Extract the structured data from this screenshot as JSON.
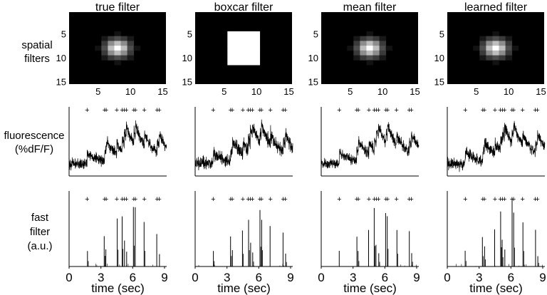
{
  "chart_data": {
    "type": "figure",
    "columns": [
      {
        "key": "true",
        "title": "true filter",
        "spatial": {
          "shape": "gaussian",
          "center": [
            8,
            8
          ],
          "sigma": 1.3
        }
      },
      {
        "key": "boxcar",
        "title": "boxcar filter",
        "spatial": {
          "shape": "box",
          "xrange": [
            6,
            10
          ],
          "yrange": [
            5,
            11
          ]
        }
      },
      {
        "key": "mean",
        "title": "mean filter",
        "spatial": {
          "shape": "gaussian",
          "center": [
            8,
            8
          ],
          "sigma": 1.3
        }
      },
      {
        "key": "learned",
        "title": "learned filter",
        "spatial": {
          "shape": "gaussian",
          "center": [
            8,
            8
          ],
          "sigma": 1.3
        }
      }
    ],
    "row_labels": {
      "spatial": [
        "spatial",
        "filters"
      ],
      "fluorescence": [
        "fluorescence",
        "(%dF/F)"
      ],
      "fast": [
        "fast",
        "filter",
        "(a.u.)"
      ]
    },
    "spatial_axes": {
      "size": [
        15,
        15
      ],
      "xticks": [
        5,
        10,
        15
      ],
      "yticks": [
        5,
        10,
        15
      ],
      "colormap": "gray",
      "background": "#000000"
    },
    "time_axis": {
      "xlabel": "time (sec)",
      "xticks": [
        0,
        3,
        6,
        9
      ],
      "xlim": [
        0,
        9.2
      ]
    },
    "spike_times": [
      1.7,
      3.35,
      3.5,
      4.5,
      5.0,
      5.2,
      5.4,
      6.1,
      6.25,
      7.1,
      8.3,
      8.5
    ],
    "spike_marker": "+",
    "fast_filter_amplitudes": [
      0.28,
      0.45,
      0.3,
      0.7,
      0.85,
      0.4,
      0.25,
      1.0,
      0.9,
      0.65,
      0.55,
      0.2
    ],
    "trace_color": "#000000"
  }
}
